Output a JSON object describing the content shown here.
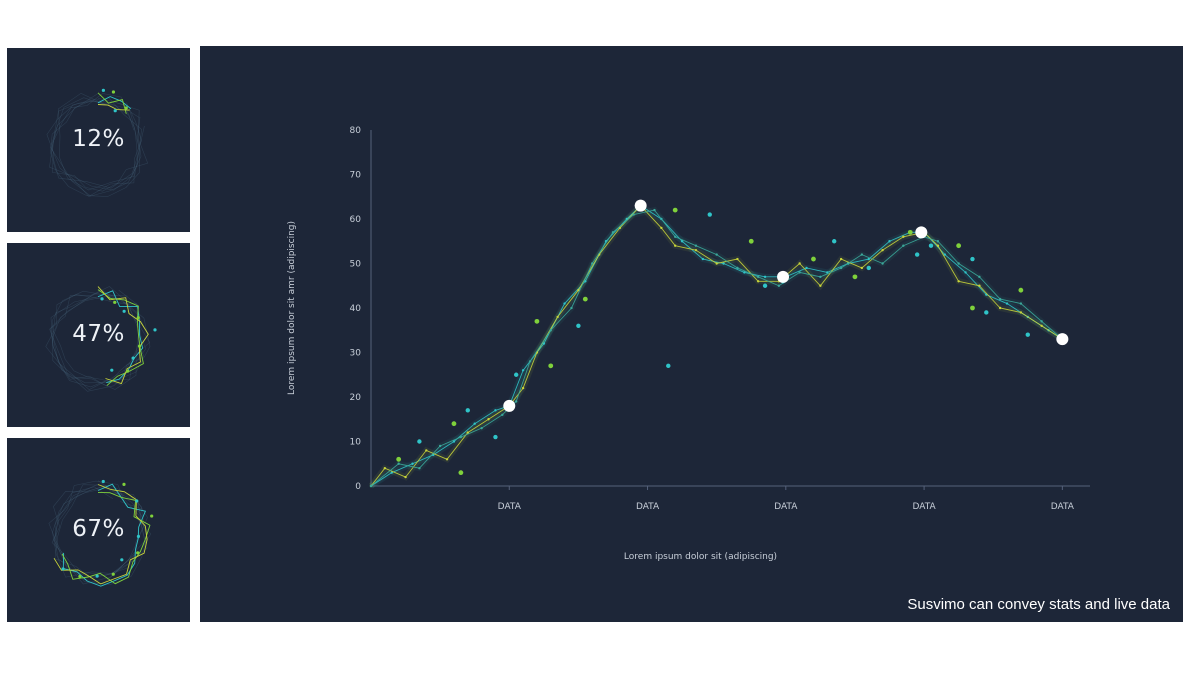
{
  "stats": [
    {
      "label": "12%",
      "value": 0.12
    },
    {
      "label": "47%",
      "value": 0.47
    },
    {
      "label": "67%",
      "value": 0.67
    }
  ],
  "caption": "Susvimo can convey stats and live data",
  "colors": {
    "background": "#1d2638",
    "page": "#ffffff",
    "teal": "#2fc4c8",
    "green": "#7fd13b",
    "yellow": "#c8d43a",
    "marker": "#ffffff",
    "text": "#c7ced8"
  },
  "chart_data": {
    "type": "line",
    "title": "",
    "xlabel": "Lorem ipsum dolor sit (adipiscing)",
    "ylabel": "Lorem ipsum dolor sit amr (adipiscing)",
    "ylim": [
      0,
      80
    ],
    "yticks": [
      0,
      10,
      20,
      30,
      40,
      50,
      60,
      70,
      80
    ],
    "xlim": [
      0,
      5.2
    ],
    "xticks": [
      1,
      2,
      3,
      4,
      5
    ],
    "xtick_labels": [
      "DATA",
      "DATA",
      "DATA",
      "DATA",
      "DATA"
    ],
    "grid": false,
    "series": [
      {
        "color": "#2fc4c8",
        "x": [
          0,
          0.15,
          0.3,
          0.45,
          0.6,
          0.75,
          0.9,
          1.0,
          1.1,
          1.25,
          1.4,
          1.55,
          1.7,
          1.85,
          1.95,
          2.1,
          2.25,
          2.4,
          2.55,
          2.7,
          2.85,
          3.0,
          3.15,
          3.3,
          3.45,
          3.6,
          3.75,
          3.9,
          4.0,
          4.15,
          4.3,
          4.45,
          4.6,
          4.75,
          4.9,
          5.0
        ],
        "y": [
          0,
          3,
          5,
          7,
          10,
          14,
          17,
          18,
          26,
          32,
          41,
          46,
          55,
          60,
          63,
          60,
          55,
          51,
          50,
          48,
          47,
          47,
          49,
          48,
          50,
          51,
          55,
          57,
          57,
          52,
          48,
          43,
          41,
          38,
          35,
          33
        ]
      },
      {
        "color": "#c8d43a",
        "x": [
          0,
          0.1,
          0.25,
          0.4,
          0.55,
          0.7,
          0.85,
          1.0,
          1.1,
          1.2,
          1.35,
          1.5,
          1.65,
          1.8,
          1.95,
          2.1,
          2.2,
          2.35,
          2.5,
          2.65,
          2.8,
          2.95,
          3.1,
          3.25,
          3.4,
          3.55,
          3.7,
          3.85,
          4.0,
          4.1,
          4.25,
          4.4,
          4.55,
          4.7,
          4.85,
          5.0
        ],
        "y": [
          0,
          4,
          2,
          8,
          6,
          12,
          15,
          18,
          22,
          30,
          38,
          44,
          52,
          58,
          63,
          58,
          54,
          53,
          50,
          51,
          46,
          46,
          50,
          45,
          51,
          49,
          53,
          56,
          57,
          54,
          46,
          45,
          40,
          39,
          36,
          33
        ]
      },
      {
        "color": "#3aa89a",
        "x": [
          0,
          0.2,
          0.35,
          0.5,
          0.65,
          0.8,
          0.95,
          1.05,
          1.15,
          1.3,
          1.45,
          1.6,
          1.75,
          1.9,
          2.05,
          2.2,
          2.35,
          2.5,
          2.65,
          2.8,
          2.95,
          3.1,
          3.25,
          3.4,
          3.55,
          3.7,
          3.85,
          4.0,
          4.1,
          4.25,
          4.4,
          4.55,
          4.7,
          4.85,
          5.0
        ],
        "y": [
          0,
          5,
          4,
          9,
          11,
          13,
          16,
          19,
          28,
          35,
          40,
          50,
          57,
          61,
          62,
          56,
          54,
          52,
          49,
          47,
          45,
          48,
          47,
          49,
          52,
          50,
          54,
          56,
          55,
          50,
          47,
          42,
          41,
          37,
          33
        ]
      }
    ],
    "scatter_teal": {
      "x": [
        0.35,
        0.7,
        0.9,
        1.05,
        1.5,
        2.15,
        2.45,
        2.85,
        2.98,
        3.35,
        3.6,
        3.95,
        4.05,
        4.35,
        4.45,
        4.75
      ],
      "y": [
        10,
        17,
        11,
        25,
        36,
        27,
        61,
        45,
        46,
        55,
        49,
        52,
        54,
        51,
        39,
        34
      ]
    },
    "scatter_green": {
      "x": [
        0.2,
        0.6,
        0.65,
        1.2,
        1.3,
        1.55,
        2.2,
        2.75,
        3.2,
        3.5,
        3.9,
        4.25,
        4.35,
        4.7
      ],
      "y": [
        6,
        14,
        3,
        37,
        27,
        42,
        62,
        55,
        51,
        47,
        57,
        54,
        40,
        44
      ]
    },
    "highlight_points": {
      "x": [
        1.0,
        1.95,
        2.98,
        3.98,
        5.0
      ],
      "y": [
        18,
        63,
        47,
        57,
        33
      ]
    }
  }
}
